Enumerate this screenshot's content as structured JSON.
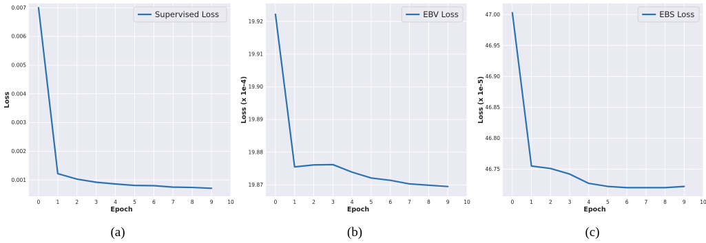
{
  "chart_data": [
    {
      "type": "line",
      "caption": "(a)",
      "xlabel": "Epoch",
      "ylabel": "Loss",
      "x": [
        0,
        1,
        2,
        3,
        4,
        5,
        6,
        7,
        8,
        9
      ],
      "xlim": [
        -0.5,
        10
      ],
      "xticks": [
        "0",
        "1",
        "2",
        "3",
        "4",
        "5",
        "6",
        "7",
        "8",
        "9",
        "10"
      ],
      "ylim": [
        0.00043,
        0.00715
      ],
      "yticks": [
        "0.001",
        "0.002",
        "0.003",
        "0.004",
        "0.005",
        "0.006",
        "0.007"
      ],
      "ytick_values": [
        0.001,
        0.002,
        0.003,
        0.004,
        0.005,
        0.006,
        0.007
      ],
      "grid": true,
      "legend_position": "top-right",
      "series": [
        {
          "name": "Supervised Loss",
          "color": "#2b72b3",
          "values": [
            0.007,
            0.00122,
            0.00103,
            0.00092,
            0.00086,
            0.00081,
            0.0008,
            0.00075,
            0.00074,
            0.00071
          ]
        }
      ]
    },
    {
      "type": "line",
      "caption": "(b)",
      "xlabel": "Epoch",
      "ylabel": "Loss (x 1e-4)",
      "x": [
        0,
        1,
        2,
        3,
        4,
        5,
        6,
        7,
        8,
        9
      ],
      "xlim": [
        -0.5,
        10
      ],
      "xticks": [
        "0",
        "1",
        "2",
        "3",
        "4",
        "5",
        "6",
        "7",
        "8",
        "9",
        "10"
      ],
      "ylim": [
        19.8665,
        19.9255
      ],
      "yticks": [
        "19.87",
        "19.88",
        "19.89",
        "19.90",
        "19.91",
        "19.92"
      ],
      "ytick_values": [
        19.87,
        19.88,
        19.89,
        19.9,
        19.91,
        19.92
      ],
      "grid": true,
      "legend_position": "top-right",
      "series": [
        {
          "name": "EBV Loss",
          "color": "#2b72b3",
          "values": [
            19.9222,
            19.8755,
            19.8761,
            19.8762,
            19.8739,
            19.8721,
            19.8714,
            19.8703,
            19.8699,
            19.8695
          ]
        }
      ]
    },
    {
      "type": "line",
      "caption": "(c)",
      "xlabel": "Epoch",
      "ylabel": "Loss (x 1e-5)",
      "x": [
        0,
        1,
        2,
        3,
        4,
        5,
        6,
        7,
        8,
        9
      ],
      "xlim": [
        -0.5,
        10
      ],
      "xticks": [
        "0",
        "1",
        "2",
        "3",
        "4",
        "5",
        "6",
        "7",
        "8",
        "9",
        "10"
      ],
      "ylim": [
        46.706,
        47.018
      ],
      "yticks": [
        "46.75",
        "46.80",
        "46.85",
        "46.90",
        "46.95",
        "47.00"
      ],
      "ytick_values": [
        46.75,
        46.8,
        46.85,
        46.9,
        46.95,
        47.0
      ],
      "grid": true,
      "legend_position": "top-right",
      "series": [
        {
          "name": "EBS Loss",
          "color": "#2b72b3",
          "values": [
            47.003,
            46.755,
            46.751,
            46.742,
            46.727,
            46.722,
            46.72,
            46.72,
            46.72,
            46.722
          ]
        }
      ]
    }
  ]
}
